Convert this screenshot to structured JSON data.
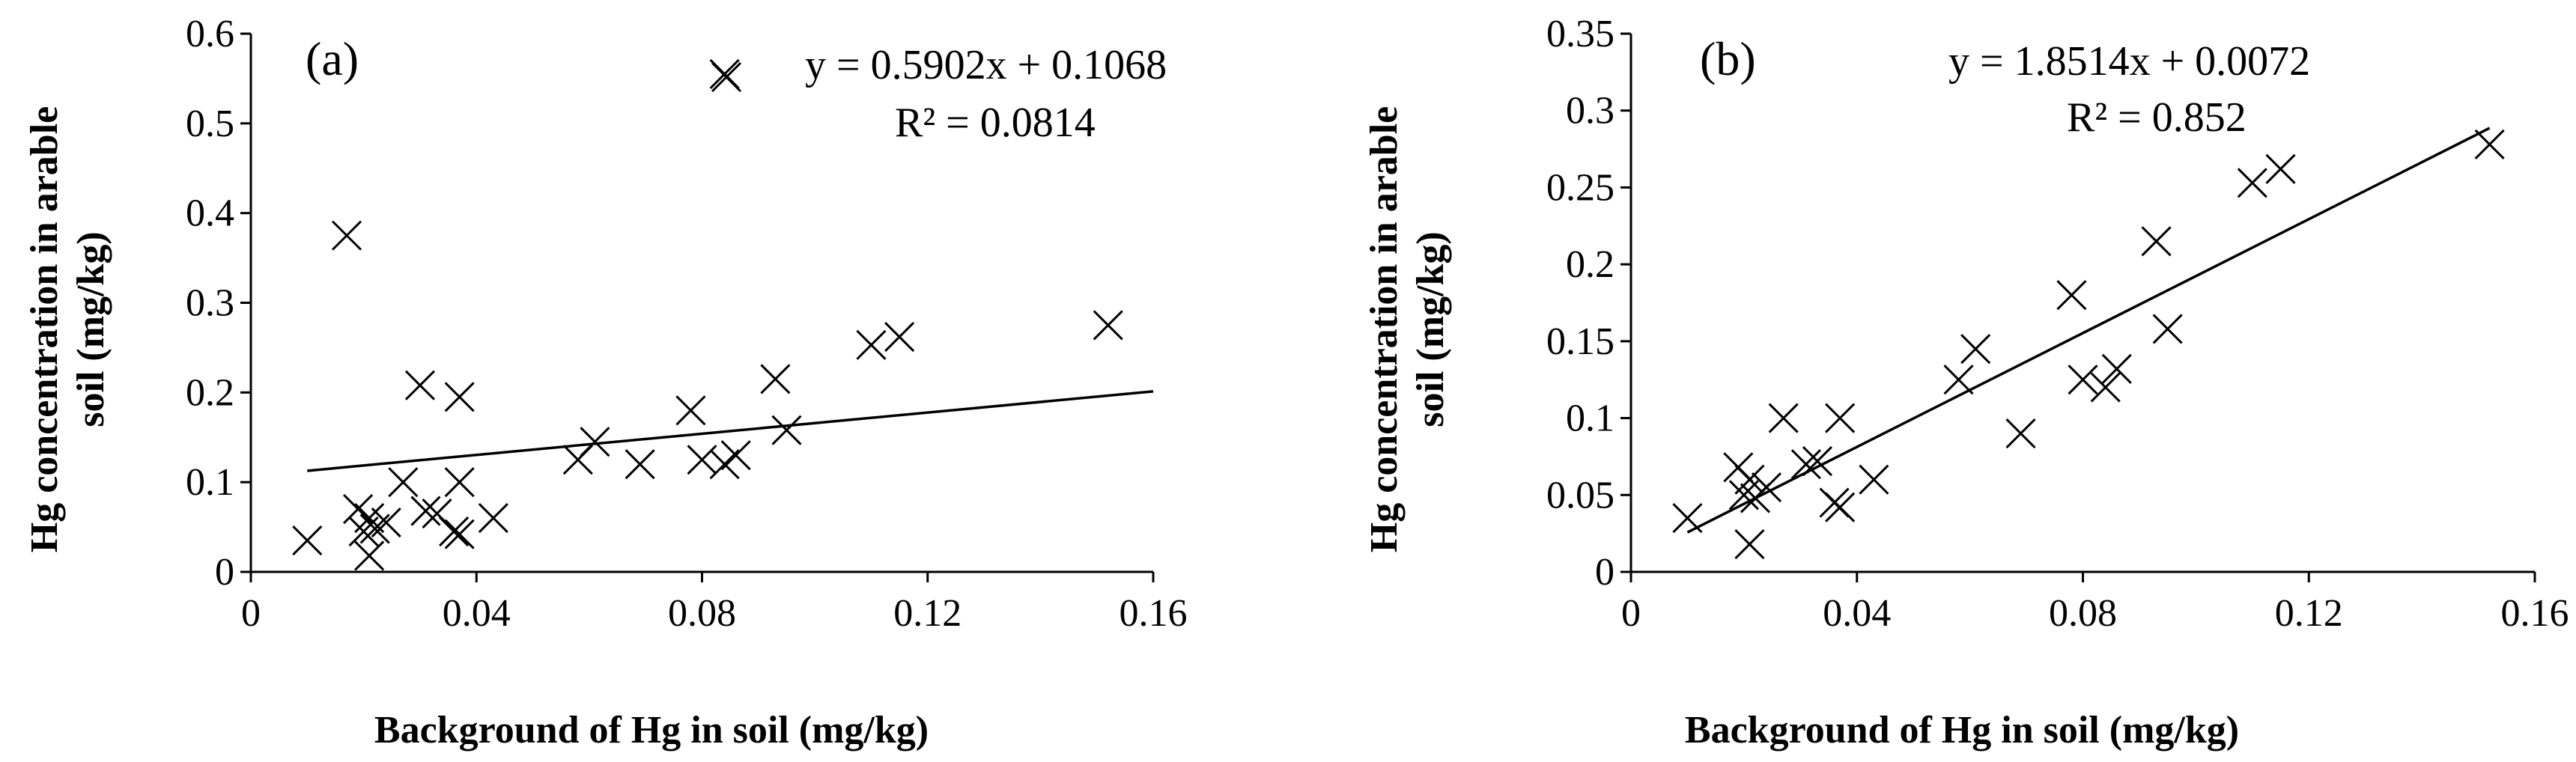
{
  "chart_data": [
    {
      "type": "scatter",
      "panel_label": "(a)",
      "xlabel": "Background of Hg in soil (mg/kg)",
      "ylabel": [
        "Hg concentration in arable",
        "soil (mg/kg)"
      ],
      "xlim": [
        0,
        0.16
      ],
      "ylim": [
        0,
        0.6
      ],
      "x_ticks": [
        "0",
        "0.04",
        "0.08",
        "0.12",
        "0.16"
      ],
      "y_ticks": [
        "0",
        "0.1",
        "0.2",
        "0.3",
        "0.4",
        "0.5",
        "0.6"
      ],
      "equation": "y = 0.5902x + 0.1068",
      "r_squared": "R² = 0.0814",
      "trendline": {
        "slope": 0.5902,
        "intercept": 0.1068,
        "x_range": [
          0.01,
          0.16
        ]
      },
      "marker": "x",
      "points": [
        {
          "x": 0.01,
          "y": 0.035
        },
        {
          "x": 0.017,
          "y": 0.375
        },
        {
          "x": 0.019,
          "y": 0.07
        },
        {
          "x": 0.02,
          "y": 0.045
        },
        {
          "x": 0.021,
          "y": 0.06
        },
        {
          "x": 0.021,
          "y": 0.018
        },
        {
          "x": 0.022,
          "y": 0.048
        },
        {
          "x": 0.024,
          "y": 0.055
        },
        {
          "x": 0.027,
          "y": 0.1
        },
        {
          "x": 0.03,
          "y": 0.208
        },
        {
          "x": 0.031,
          "y": 0.068
        },
        {
          "x": 0.033,
          "y": 0.065
        },
        {
          "x": 0.036,
          "y": 0.045
        },
        {
          "x": 0.037,
          "y": 0.195
        },
        {
          "x": 0.037,
          "y": 0.042
        },
        {
          "x": 0.037,
          "y": 0.1
        },
        {
          "x": 0.043,
          "y": 0.06
        },
        {
          "x": 0.058,
          "y": 0.125
        },
        {
          "x": 0.061,
          "y": 0.145
        },
        {
          "x": 0.069,
          "y": 0.12
        },
        {
          "x": 0.078,
          "y": 0.18
        },
        {
          "x": 0.08,
          "y": 0.125
        },
        {
          "x": 0.084,
          "y": 0.12
        },
        {
          "x": 0.084,
          "y": 0.555
        },
        {
          "x": 0.086,
          "y": 0.13
        },
        {
          "x": 0.093,
          "y": 0.215
        },
        {
          "x": 0.095,
          "y": 0.158
        },
        {
          "x": 0.11,
          "y": 0.253
        },
        {
          "x": 0.115,
          "y": 0.262
        },
        {
          "x": 0.152,
          "y": 0.275
        }
      ]
    },
    {
      "type": "scatter",
      "panel_label": "(b)",
      "xlabel": "Background of Hg in soil (mg/kg)",
      "ylabel": [
        "Hg concentration in arable",
        "soil (mg/kg)"
      ],
      "xlim": [
        0,
        0.16
      ],
      "ylim": [
        0,
        0.35
      ],
      "x_ticks": [
        "0",
        "0.04",
        "0.08",
        "0.12",
        "0.16"
      ],
      "y_ticks": [
        "0",
        "0.05",
        "0.1",
        "0.15",
        "0.2",
        "0.25",
        "0.3",
        "0.35"
      ],
      "equation": "y = 1.8514x + 0.0072",
      "r_squared": "R² = 0.852",
      "trendline": {
        "slope": 1.8514,
        "intercept": 0.0072,
        "x_range": [
          0.01,
          0.152
        ]
      },
      "marker": "x",
      "points": [
        {
          "x": 0.01,
          "y": 0.035
        },
        {
          "x": 0.019,
          "y": 0.068
        },
        {
          "x": 0.02,
          "y": 0.05
        },
        {
          "x": 0.021,
          "y": 0.06
        },
        {
          "x": 0.021,
          "y": 0.018
        },
        {
          "x": 0.022,
          "y": 0.048
        },
        {
          "x": 0.024,
          "y": 0.055
        },
        {
          "x": 0.027,
          "y": 0.1
        },
        {
          "x": 0.031,
          "y": 0.07
        },
        {
          "x": 0.033,
          "y": 0.072
        },
        {
          "x": 0.036,
          "y": 0.045
        },
        {
          "x": 0.037,
          "y": 0.1
        },
        {
          "x": 0.037,
          "y": 0.042
        },
        {
          "x": 0.043,
          "y": 0.06
        },
        {
          "x": 0.058,
          "y": 0.125
        },
        {
          "x": 0.061,
          "y": 0.145
        },
        {
          "x": 0.069,
          "y": 0.09
        },
        {
          "x": 0.078,
          "y": 0.18
        },
        {
          "x": 0.08,
          "y": 0.125
        },
        {
          "x": 0.084,
          "y": 0.12
        },
        {
          "x": 0.086,
          "y": 0.132
        },
        {
          "x": 0.093,
          "y": 0.215
        },
        {
          "x": 0.095,
          "y": 0.158
        },
        {
          "x": 0.11,
          "y": 0.253
        },
        {
          "x": 0.115,
          "y": 0.262
        },
        {
          "x": 0.152,
          "y": 0.278
        }
      ]
    }
  ]
}
